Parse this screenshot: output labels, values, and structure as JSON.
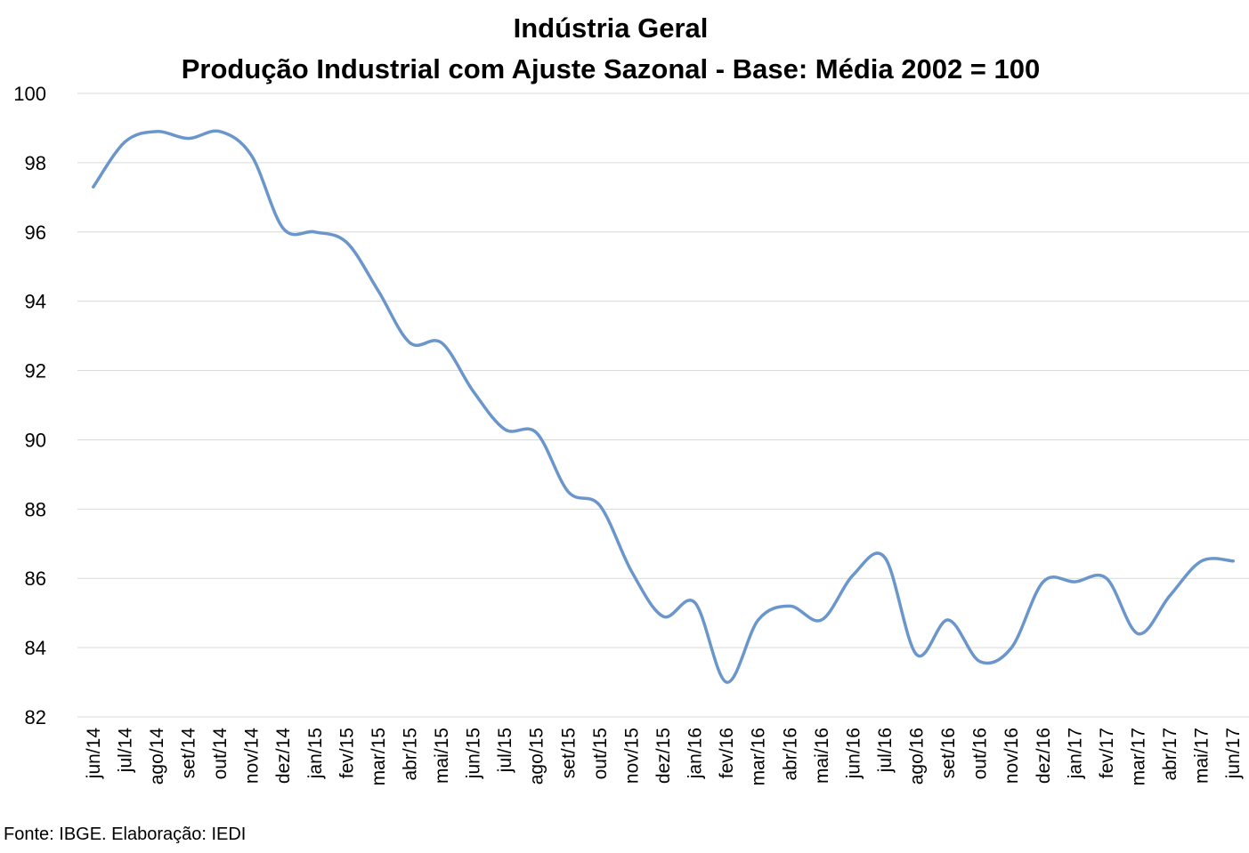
{
  "chart_data": {
    "type": "line",
    "title": "Indústria Geral",
    "subtitle": "Produção Industrial com Ajuste Sazonal - Base: Média 2002 = 100",
    "xlabel": "",
    "ylabel": "",
    "ylim": [
      82,
      100
    ],
    "yticks": [
      82,
      84,
      86,
      88,
      90,
      92,
      94,
      96,
      98,
      100
    ],
    "grid": true,
    "categories": [
      "jun/14",
      "jul/14",
      "ago/14",
      "set/14",
      "out/14",
      "nov/14",
      "dez/14",
      "jan/15",
      "fev/15",
      "mar/15",
      "abr/15",
      "mai/15",
      "jun/15",
      "jul/15",
      "ago/15",
      "set/15",
      "out/15",
      "nov/15",
      "dez/15",
      "jan/16",
      "fev/16",
      "mar/16",
      "abr/16",
      "mai/16",
      "jun/16",
      "jul/16",
      "ago/16",
      "set/16",
      "out/16",
      "nov/16",
      "dez/16",
      "jan/17",
      "fev/17",
      "mar/17",
      "abr/17",
      "mai/17",
      "jun/17"
    ],
    "series": [
      {
        "values": [
          97.3,
          98.6,
          98.9,
          98.7,
          98.9,
          98.2,
          96.1,
          96.0,
          95.7,
          94.3,
          92.8,
          92.8,
          91.4,
          90.3,
          90.2,
          88.5,
          88.1,
          86.2,
          84.9,
          85.3,
          83.0,
          84.8,
          85.2,
          84.8,
          86.1,
          86.6,
          83.8,
          84.8,
          83.6,
          84.0,
          85.9,
          85.9,
          86.0,
          84.4,
          85.5,
          86.5,
          86.5
        ],
        "color": "#6a96cb"
      }
    ],
    "gridline_color": "#d9d9d9"
  },
  "source_note": "Fonte: IBGE. Elaboração: IEDI"
}
